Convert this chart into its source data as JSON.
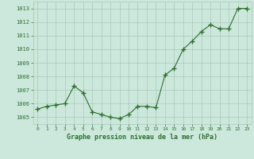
{
  "x": [
    0,
    1,
    2,
    3,
    4,
    5,
    6,
    7,
    8,
    9,
    10,
    11,
    12,
    13,
    14,
    15,
    16,
    17,
    18,
    19,
    20,
    21,
    22,
    23
  ],
  "y": [
    1005.6,
    1005.8,
    1005.9,
    1006.0,
    1007.3,
    1006.8,
    1005.4,
    1005.2,
    1005.0,
    1004.9,
    1005.2,
    1005.8,
    1005.8,
    1005.7,
    1008.1,
    1008.6,
    1010.0,
    1010.6,
    1011.3,
    1011.8,
    1011.5,
    1011.5,
    1013.0,
    1013.0
  ],
  "line_color": "#2d6e2d",
  "marker": "+",
  "marker_size": 4,
  "bg_color": "#cce8dc",
  "grid_color": "#aac8b8",
  "xlabel": "Graphe pression niveau de la mer (hPa)",
  "xlabel_color": "#2d6e2d",
  "tick_color": "#2d6e2d",
  "ylim": [
    1004.5,
    1013.5
  ],
  "yticks": [
    1005,
    1006,
    1007,
    1008,
    1009,
    1010,
    1011,
    1012,
    1013
  ],
  "xticks": [
    0,
    1,
    2,
    3,
    4,
    5,
    6,
    7,
    8,
    9,
    10,
    11,
    12,
    13,
    14,
    15,
    16,
    17,
    18,
    19,
    20,
    21,
    22,
    23
  ]
}
